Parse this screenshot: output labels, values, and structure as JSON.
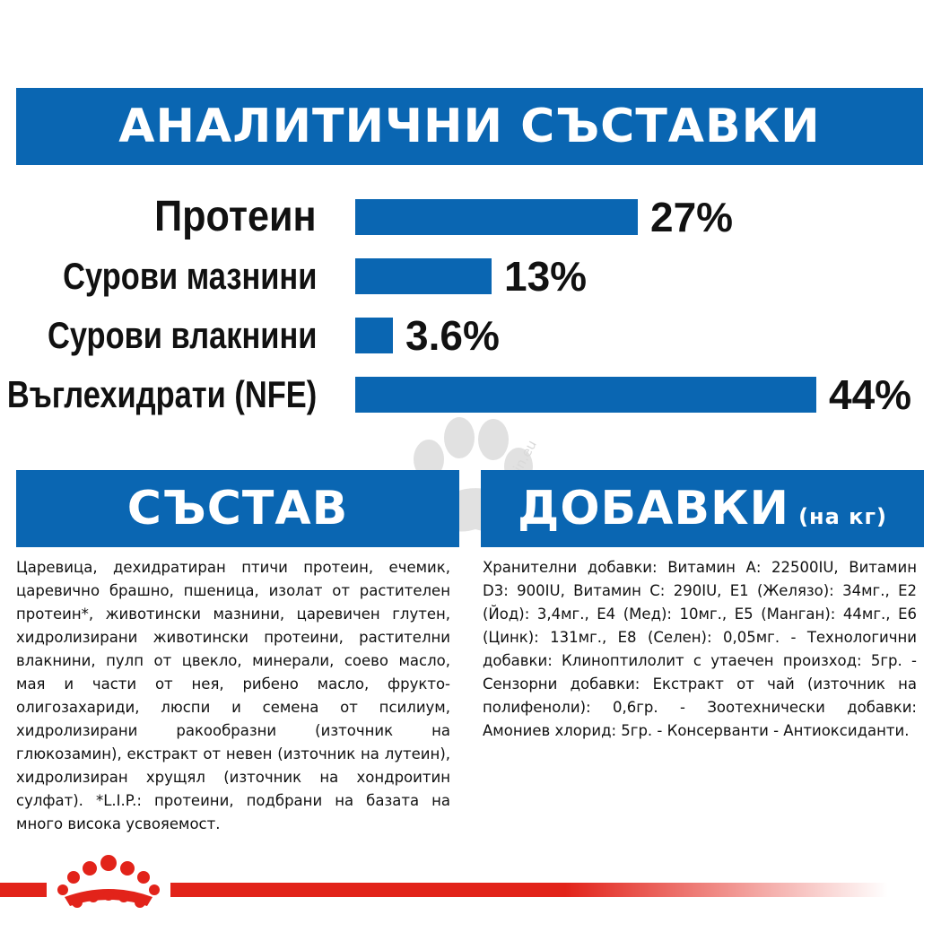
{
  "header": {
    "title": "АНАЛИТИЧНИ СЪСТАВКИ"
  },
  "analytics": [
    {
      "label": "Протеин",
      "value_text": "27%",
      "value": 27
    },
    {
      "label": "Сурови мазнини",
      "value_text": "13%",
      "value": 13
    },
    {
      "label": "Сурови влакнини",
      "value_text": "3.6%",
      "value": 3.6
    },
    {
      "label": "Въглехидрати (NFE)",
      "value_text": "44%",
      "value": 44
    }
  ],
  "composition": {
    "title": "СЪСТАВ",
    "text": "Царевица, дехидратиран птичи протеин, ечемик, царевично брашно, пшеница, изолат от растителен протеин*, животински мазнини, царевичен глутен, хидролизирани животински протеини, растителни влакнини, пулп от цвекло, минерали, соево масло, мая и части от нея, рибено масло, фрукто- олигозахариди, люспи и семена от псилиум, хидролизирани ракообразни (източник на глюкозамин), екстракт от невен (източник на лутеин), хидролизиран хрущял (източник на хондроитин сулфат). *L.I.P.: протеини, подбрани на базата на много висока усвояемост."
  },
  "additives": {
    "title": "ДОБАВКИ",
    "title_suffix": "(на кг)",
    "text": "Хранителни добавки: Витамин А: 22500IU, Витамин D3: 900IU, Витамин С: 290IU, E1 (Желязо): 34мг., E2 (Йод): 3,4мг., E4 (Мед): 10мг., E5 (Манган): 44мг., E6 (Цинк): 131мг., E8 (Селен): 0,05мг. - Технологични добавки: Клиноптилолит с утаечен произход: 5гр. - Сензорни добавки: Екстракт от чай (източник на полифеноли): 0,6гр. - Зоотехнически добавки: Амониев хлорид: 5гр. - Консерванти - Антиоксиданти."
  },
  "watermark": {
    "text": "zoomagazin.eu"
  },
  "colors": {
    "brand_blue": "#0a66b2",
    "brand_red": "#e2231a"
  }
}
